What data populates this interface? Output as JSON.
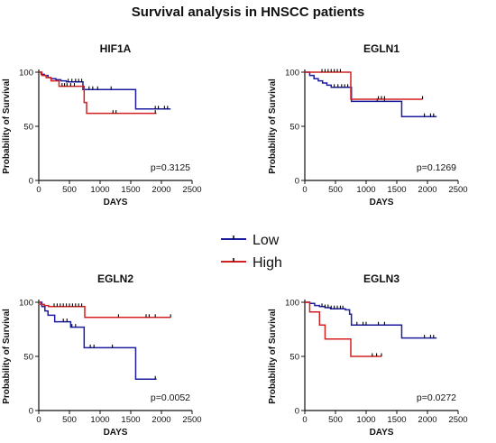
{
  "figure_title": "Survival analysis in HNSCC patients",
  "colors": {
    "low": "#1c1ca0",
    "high": "#d42020",
    "axis": "#111111",
    "censor": "#000000"
  },
  "legend": {
    "items": [
      {
        "key": "low",
        "label": "Low"
      },
      {
        "key": "high",
        "label": "High"
      }
    ]
  },
  "chart_data": [
    {
      "type": "line",
      "title": "HIF1A",
      "xlabel": "DAYS",
      "ylabel": "Probability of Survival",
      "xlim": [
        0,
        2500
      ],
      "ylim": [
        0,
        100
      ],
      "xticks": [
        0,
        500,
        1000,
        1500,
        2000,
        2500
      ],
      "yticks": [
        0,
        50,
        100
      ],
      "annotation": "p=0.3125",
      "series": [
        {
          "name": "Low",
          "x": [
            0,
            40,
            90,
            150,
            200,
            280,
            360,
            450,
            720,
            760,
            1580,
            2150
          ],
          "y": [
            100,
            98,
            97,
            95,
            94,
            93,
            92,
            91,
            84,
            84,
            66,
            66
          ],
          "censors_x": [
            480,
            540,
            600,
            650,
            700,
            820,
            880,
            960,
            1180,
            1900,
            1950,
            2050,
            2100
          ]
        },
        {
          "name": "High",
          "x": [
            0,
            50,
            120,
            200,
            330,
            740,
            780,
            1920
          ],
          "y": [
            100,
            97,
            95,
            92,
            87,
            72,
            62,
            62
          ],
          "censors_x": [
            380,
            420,
            460,
            520,
            580,
            1210,
            1260,
            1900
          ]
        }
      ]
    },
    {
      "type": "line",
      "title": "EGLN1",
      "xlabel": "DAYS",
      "ylabel": "Probability of Survival",
      "xlim": [
        0,
        2500
      ],
      "ylim": [
        0,
        100
      ],
      "xticks": [
        0,
        500,
        1000,
        1500,
        2000,
        2500
      ],
      "yticks": [
        0,
        50,
        100
      ],
      "annotation": "p=0.1269",
      "series": [
        {
          "name": "Low",
          "x": [
            0,
            80,
            150,
            220,
            290,
            360,
            430,
            760,
            1580,
            2150
          ],
          "y": [
            100,
            97,
            94,
            92,
            90,
            88,
            86,
            73,
            59,
            59
          ],
          "censors_x": [
            480,
            540,
            600,
            650,
            700,
            1180,
            1300,
            1950,
            2050,
            2100
          ]
        },
        {
          "name": "High",
          "x": [
            0,
            750,
            1920
          ],
          "y": [
            100,
            75,
            75
          ],
          "censors_x": [
            280,
            330,
            380,
            430,
            480,
            530,
            580,
            1200,
            1250,
            1300,
            1920
          ]
        }
      ]
    },
    {
      "type": "line",
      "title": "EGLN2",
      "xlabel": "DAYS",
      "ylabel": "Probability of Survival",
      "xlim": [
        0,
        2500
      ],
      "ylim": [
        0,
        100
      ],
      "xticks": [
        0,
        500,
        1000,
        1500,
        2000,
        2500
      ],
      "yticks": [
        0,
        50,
        100
      ],
      "annotation": "p=0.0052",
      "series": [
        {
          "name": "Low",
          "x": [
            0,
            50,
            100,
            150,
            260,
            520,
            740,
            1580,
            1920
          ],
          "y": [
            100,
            96,
            92,
            88,
            82,
            77,
            58,
            29,
            29
          ],
          "censors_x": [
            400,
            460,
            540,
            600,
            840,
            900,
            1200,
            1900
          ]
        },
        {
          "name": "High",
          "x": [
            0,
            30,
            90,
            160,
            750,
            2150
          ],
          "y": [
            100,
            98,
            97,
            96,
            86,
            86
          ],
          "censors_x": [
            250,
            300,
            350,
            400,
            450,
            500,
            550,
            600,
            650,
            700,
            1300,
            1750,
            1800,
            1900,
            2150
          ]
        }
      ]
    },
    {
      "type": "line",
      "title": "EGLN3",
      "xlabel": "DAYS",
      "ylabel": "Probability of Survival",
      "xlim": [
        0,
        2500
      ],
      "ylim": [
        0,
        100
      ],
      "xticks": [
        0,
        500,
        1000,
        1500,
        2000,
        2500
      ],
      "yticks": [
        0,
        50,
        100
      ],
      "annotation": "p=0.0272",
      "series": [
        {
          "name": "Low",
          "x": [
            0,
            80,
            160,
            240,
            330,
            420,
            660,
            730,
            760,
            1580,
            2150
          ],
          "y": [
            100,
            99,
            97,
            96,
            95,
            94,
            93,
            89,
            79,
            67,
            67
          ],
          "censors_x": [
            280,
            330,
            380,
            430,
            480,
            530,
            580,
            620,
            850,
            950,
            1000,
            1200,
            1300,
            1950,
            2050,
            2100
          ]
        },
        {
          "name": "High",
          "x": [
            0,
            80,
            240,
            330,
            750,
            1250
          ],
          "y": [
            100,
            91,
            79,
            66,
            50,
            50
          ],
          "censors_x": [
            1100,
            1170,
            1250
          ]
        }
      ]
    }
  ]
}
